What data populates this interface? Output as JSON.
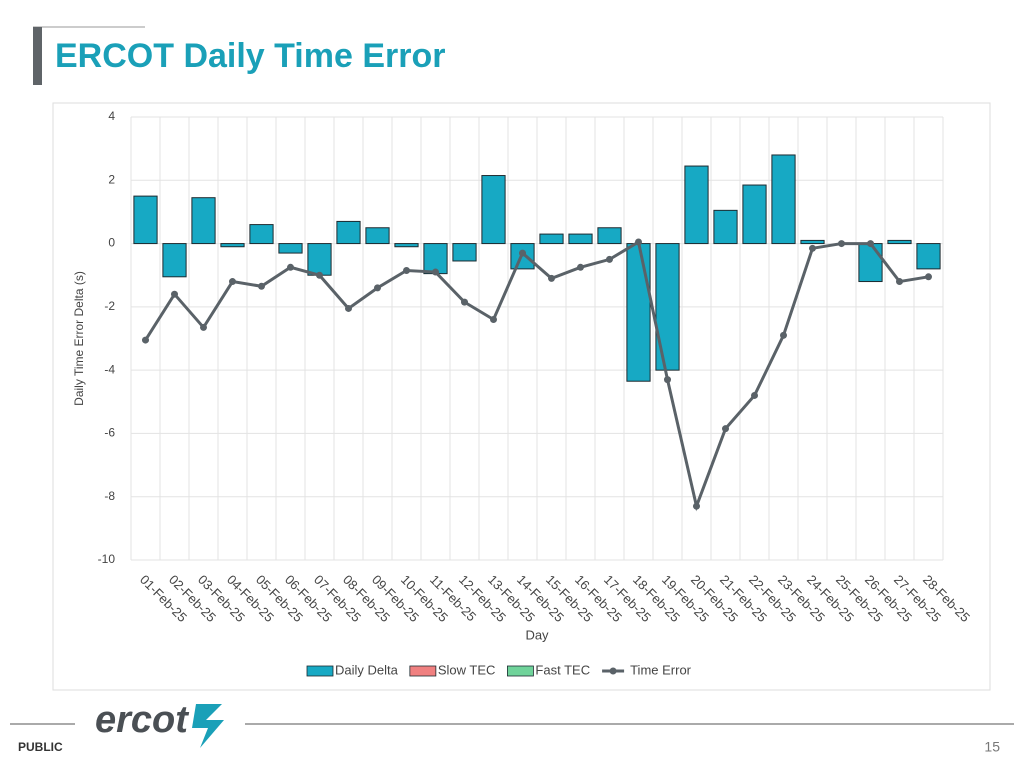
{
  "header": {
    "title": "ERCOT Daily Time Error"
  },
  "footer": {
    "logo": "ercot",
    "label": "PUBLIC",
    "page": "15"
  },
  "chart_data": {
    "type": "combo",
    "xlabel": "Day",
    "ylabel": "Daily Time Error Delta (s)",
    "categories": [
      "01-Feb-25",
      "02-Feb-25",
      "03-Feb-25",
      "04-Feb-25",
      "05-Feb-25",
      "06-Feb-25",
      "07-Feb-25",
      "08-Feb-25",
      "09-Feb-25",
      "10-Feb-25",
      "11-Feb-25",
      "12-Feb-25",
      "13-Feb-25",
      "14-Feb-25",
      "15-Feb-25",
      "16-Feb-25",
      "17-Feb-25",
      "18-Feb-25",
      "19-Feb-25",
      "20-Feb-25",
      "21-Feb-25",
      "22-Feb-25",
      "23-Feb-25",
      "24-Feb-25",
      "25-Feb-25",
      "26-Feb-25",
      "27-Feb-25",
      "28-Feb-25"
    ],
    "series": [
      {
        "name": "Daily Delta",
        "type": "bar",
        "color": "#17a9c4",
        "values": [
          1.5,
          -1.05,
          1.45,
          -0.1,
          0.6,
          -0.3,
          -1.0,
          0.7,
          0.5,
          -0.1,
          -0.95,
          -0.55,
          2.15,
          -0.8,
          0.3,
          0.3,
          0.5,
          -4.35,
          -4.0,
          2.45,
          1.05,
          1.85,
          2.8,
          0.1,
          0.0,
          -1.2,
          0.1,
          -0.8
        ]
      },
      {
        "name": "Slow TEC",
        "type": "bar",
        "color": "#f08080",
        "values": [
          null,
          null,
          null,
          null,
          null,
          null,
          null,
          null,
          null,
          null,
          null,
          null,
          null,
          null,
          null,
          null,
          null,
          null,
          null,
          null,
          null,
          null,
          null,
          null,
          null,
          null,
          null,
          null
        ]
      },
      {
        "name": "Fast TEC",
        "type": "bar",
        "color": "#6fd39a",
        "values": [
          null,
          null,
          null,
          null,
          null,
          null,
          null,
          null,
          null,
          null,
          null,
          null,
          null,
          null,
          null,
          null,
          null,
          null,
          null,
          null,
          null,
          null,
          null,
          null,
          null,
          null,
          null,
          null
        ]
      },
      {
        "name": "Time Error",
        "type": "line",
        "color": "#5a6268",
        "values": [
          -3.05,
          -1.6,
          -2.65,
          -1.2,
          -1.35,
          -0.75,
          -1.0,
          -2.05,
          -1.4,
          -0.85,
          -0.9,
          -1.85,
          -2.4,
          -0.3,
          -1.1,
          -0.75,
          -0.5,
          0.05,
          -4.3,
          -8.3,
          -5.85,
          -4.8,
          -2.9,
          -0.15,
          0.0,
          0.0,
          -1.2,
          -1.05
        ]
      }
    ],
    "ylim": [
      -10,
      4
    ],
    "yticks": [
      -10,
      -8,
      -6,
      -4,
      -2,
      0,
      2,
      4
    ],
    "grid": true,
    "legend": "bottom"
  }
}
